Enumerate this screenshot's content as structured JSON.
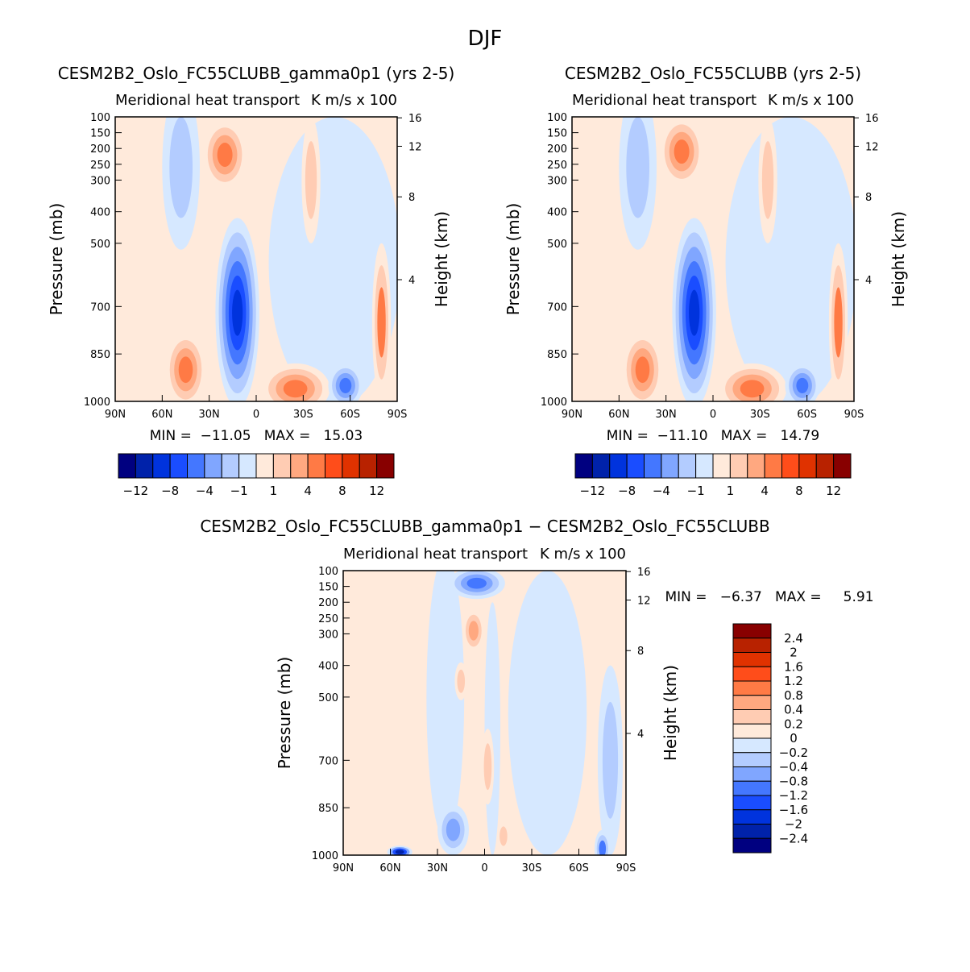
{
  "title": "DJF",
  "chart_data": [
    {
      "type": "heatmap",
      "title": "CESM2B2_Oslo_FC55CLUBB_gamma0p1 (yrs 2-5)",
      "subtitle_left": "Meridional heat transport",
      "subtitle_right": "K m/s x 100",
      "xlabel": "",
      "ylabel": "Pressure (mb)",
      "y2label": "Height (km)",
      "xticks": [
        "90N",
        "60N",
        "30N",
        "0",
        "30S",
        "60S",
        "90S"
      ],
      "yticks": [
        100,
        150,
        200,
        250,
        300,
        400,
        500,
        700,
        850,
        1000
      ],
      "y2ticks": [
        {
          "label": "16",
          "p": 103
        },
        {
          "label": "12",
          "p": 193
        },
        {
          "label": "8",
          "p": 353
        },
        {
          "label": "4",
          "p": 615
        }
      ],
      "min_max": "MIN =  −11.05   MAX =   15.03",
      "colorbar_labels": [
        "−12",
        "−8",
        "−4",
        "−1",
        "1",
        "4",
        "8",
        "12"
      ],
      "levels": [
        -12,
        -10,
        -8,
        -6,
        -4,
        -2,
        -1,
        0,
        1,
        2,
        4,
        6,
        8,
        10,
        12
      ],
      "background_bin": 8,
      "blobs": [
        {
          "lat": 48,
          "p": 260,
          "dlat": 12,
          "dp": 260,
          "bins": [
            7,
            6
          ]
        },
        {
          "lat": -50,
          "p": 560,
          "dlat": 42,
          "dp": 460,
          "bins": [
            7
          ]
        },
        {
          "lat": -35,
          "p": 300,
          "dlat": 6,
          "dp": 200,
          "bins": [
            8,
            9
          ]
        },
        {
          "lat": -80,
          "p": 750,
          "dlat": 6,
          "dp": 250,
          "bins": [
            8,
            9,
            11
          ]
        },
        {
          "lat": 12,
          "p": 720,
          "dlat": 14,
          "dp": 300,
          "bins": [
            7,
            6,
            5,
            4,
            3,
            2
          ]
        },
        {
          "lat": 20,
          "p": 220,
          "dlat": 14,
          "dp": 110,
          "bins": [
            8,
            9,
            10,
            11
          ]
        },
        {
          "lat": 45,
          "p": 900,
          "dlat": 13,
          "dp": 120,
          "bins": [
            8,
            9,
            10,
            11
          ]
        },
        {
          "lat": -25,
          "p": 960,
          "dlat": 22,
          "dp": 80,
          "bins": [
            8,
            9,
            10,
            11
          ]
        },
        {
          "lat": -57,
          "p": 950,
          "dlat": 11,
          "dp": 70,
          "bins": [
            7,
            6,
            5,
            4
          ]
        }
      ]
    },
    {
      "type": "heatmap",
      "title": "CESM2B2_Oslo_FC55CLUBB (yrs 2-5)",
      "subtitle_left": "Meridional heat transport",
      "subtitle_right": "K m/s x 100",
      "xlabel": "",
      "ylabel": "Pressure (mb)",
      "y2label": "Height (km)",
      "xticks": [
        "90N",
        "60N",
        "30N",
        "0",
        "30S",
        "60S",
        "90S"
      ],
      "yticks": [
        100,
        150,
        200,
        250,
        300,
        400,
        500,
        700,
        850,
        1000
      ],
      "y2ticks": [
        {
          "label": "16",
          "p": 103
        },
        {
          "label": "12",
          "p": 193
        },
        {
          "label": "8",
          "p": 353
        },
        {
          "label": "4",
          "p": 615
        }
      ],
      "min_max": "MIN =  −11.10   MAX =   14.79",
      "colorbar_labels": [
        "−12",
        "−8",
        "−4",
        "−1",
        "1",
        "4",
        "8",
        "12"
      ],
      "levels": [
        -12,
        -10,
        -8,
        -6,
        -4,
        -2,
        -1,
        0,
        1,
        2,
        4,
        6,
        8,
        10,
        12
      ],
      "background_bin": 8,
      "blobs": [
        {
          "lat": 48,
          "p": 260,
          "dlat": 12,
          "dp": 260,
          "bins": [
            7,
            6
          ]
        },
        {
          "lat": -50,
          "p": 560,
          "dlat": 42,
          "dp": 460,
          "bins": [
            7
          ]
        },
        {
          "lat": -35,
          "p": 300,
          "dlat": 6,
          "dp": 200,
          "bins": [
            8,
            9
          ]
        },
        {
          "lat": -80,
          "p": 750,
          "dlat": 6,
          "dp": 250,
          "bins": [
            8,
            9,
            11
          ]
        },
        {
          "lat": 12,
          "p": 720,
          "dlat": 14,
          "dp": 300,
          "bins": [
            7,
            6,
            5,
            4,
            3,
            2
          ]
        },
        {
          "lat": 20,
          "p": 210,
          "dlat": 14,
          "dp": 110,
          "bins": [
            8,
            9,
            10,
            11
          ]
        },
        {
          "lat": 45,
          "p": 900,
          "dlat": 13,
          "dp": 120,
          "bins": [
            8,
            9,
            10,
            11
          ]
        },
        {
          "lat": -25,
          "p": 960,
          "dlat": 22,
          "dp": 80,
          "bins": [
            8,
            9,
            10,
            11
          ]
        },
        {
          "lat": -57,
          "p": 950,
          "dlat": 11,
          "dp": 70,
          "bins": [
            7,
            6,
            5,
            4
          ]
        }
      ]
    },
    {
      "type": "heatmap",
      "title": "CESM2B2_Oslo_FC55CLUBB_gamma0p1 − CESM2B2_Oslo_FC55CLUBB",
      "subtitle_left": "Meridional heat transport",
      "subtitle_right": "K m/s x 100",
      "xlabel": "",
      "ylabel": "Pressure (mb)",
      "y2label": "Height (km)",
      "xticks": [
        "90N",
        "60N",
        "30N",
        "0",
        "30S",
        "60S",
        "90S"
      ],
      "yticks": [
        100,
        150,
        200,
        250,
        300,
        400,
        500,
        700,
        850,
        1000
      ],
      "y2ticks": [
        {
          "label": "16",
          "p": 103
        },
        {
          "label": "12",
          "p": 193
        },
        {
          "label": "8",
          "p": 353
        },
        {
          "label": "4",
          "p": 615
        }
      ],
      "min_max": "MIN =   −6.37   MAX =     5.91",
      "colorbar_labels": [
        "2.4",
        "2",
        "1.6",
        "1.2",
        "0.8",
        "0.4",
        "0.2",
        "0",
        "−0.2",
        "−0.4",
        "−0.8",
        "−1.2",
        "−1.6",
        "−2",
        "−2.4"
      ],
      "levels": [
        -2.4,
        -2,
        -1.6,
        -1.2,
        -0.8,
        -0.4,
        -0.2,
        0,
        0.2,
        0.4,
        0.8,
        1.2,
        1.6,
        2,
        2.4
      ],
      "background_bin": 8,
      "blobs": [
        {
          "lat": 25,
          "p": 500,
          "dlat": 12,
          "dp": 450,
          "bins": [
            7
          ]
        },
        {
          "lat": -5,
          "p": 600,
          "dlat": 5,
          "dp": 400,
          "bins": [
            7
          ]
        },
        {
          "lat": -40,
          "p": 550,
          "dlat": 25,
          "dp": 450,
          "bins": [
            7
          ]
        },
        {
          "lat": -80,
          "p": 700,
          "dlat": 8,
          "dp": 300,
          "bins": [
            7,
            6
          ]
        },
        {
          "lat": 5,
          "p": 140,
          "dlat": 18,
          "dp": 50,
          "bins": [
            7,
            6,
            5,
            4
          ]
        },
        {
          "lat": 7,
          "p": 290,
          "dlat": 7,
          "dp": 70,
          "bins": [
            8,
            9,
            10
          ]
        },
        {
          "lat": -2,
          "p": 720,
          "dlat": 4,
          "dp": 120,
          "bins": [
            8,
            9
          ]
        },
        {
          "lat": 15,
          "p": 450,
          "dlat": 4,
          "dp": 60,
          "bins": [
            8,
            9
          ]
        },
        {
          "lat": 20,
          "p": 920,
          "dlat": 10,
          "dp": 80,
          "bins": [
            7,
            6,
            5
          ]
        },
        {
          "lat": 54,
          "p": 990,
          "dlat": 8,
          "dp": 20,
          "bins": [
            7,
            5,
            3,
            1
          ]
        },
        {
          "lat": -75,
          "p": 980,
          "dlat": 5,
          "dp": 60,
          "bins": [
            7,
            6,
            4
          ]
        },
        {
          "lat": -12,
          "p": 940,
          "dlat": 4,
          "dp": 50,
          "bins": [
            8,
            9
          ]
        }
      ]
    }
  ]
}
